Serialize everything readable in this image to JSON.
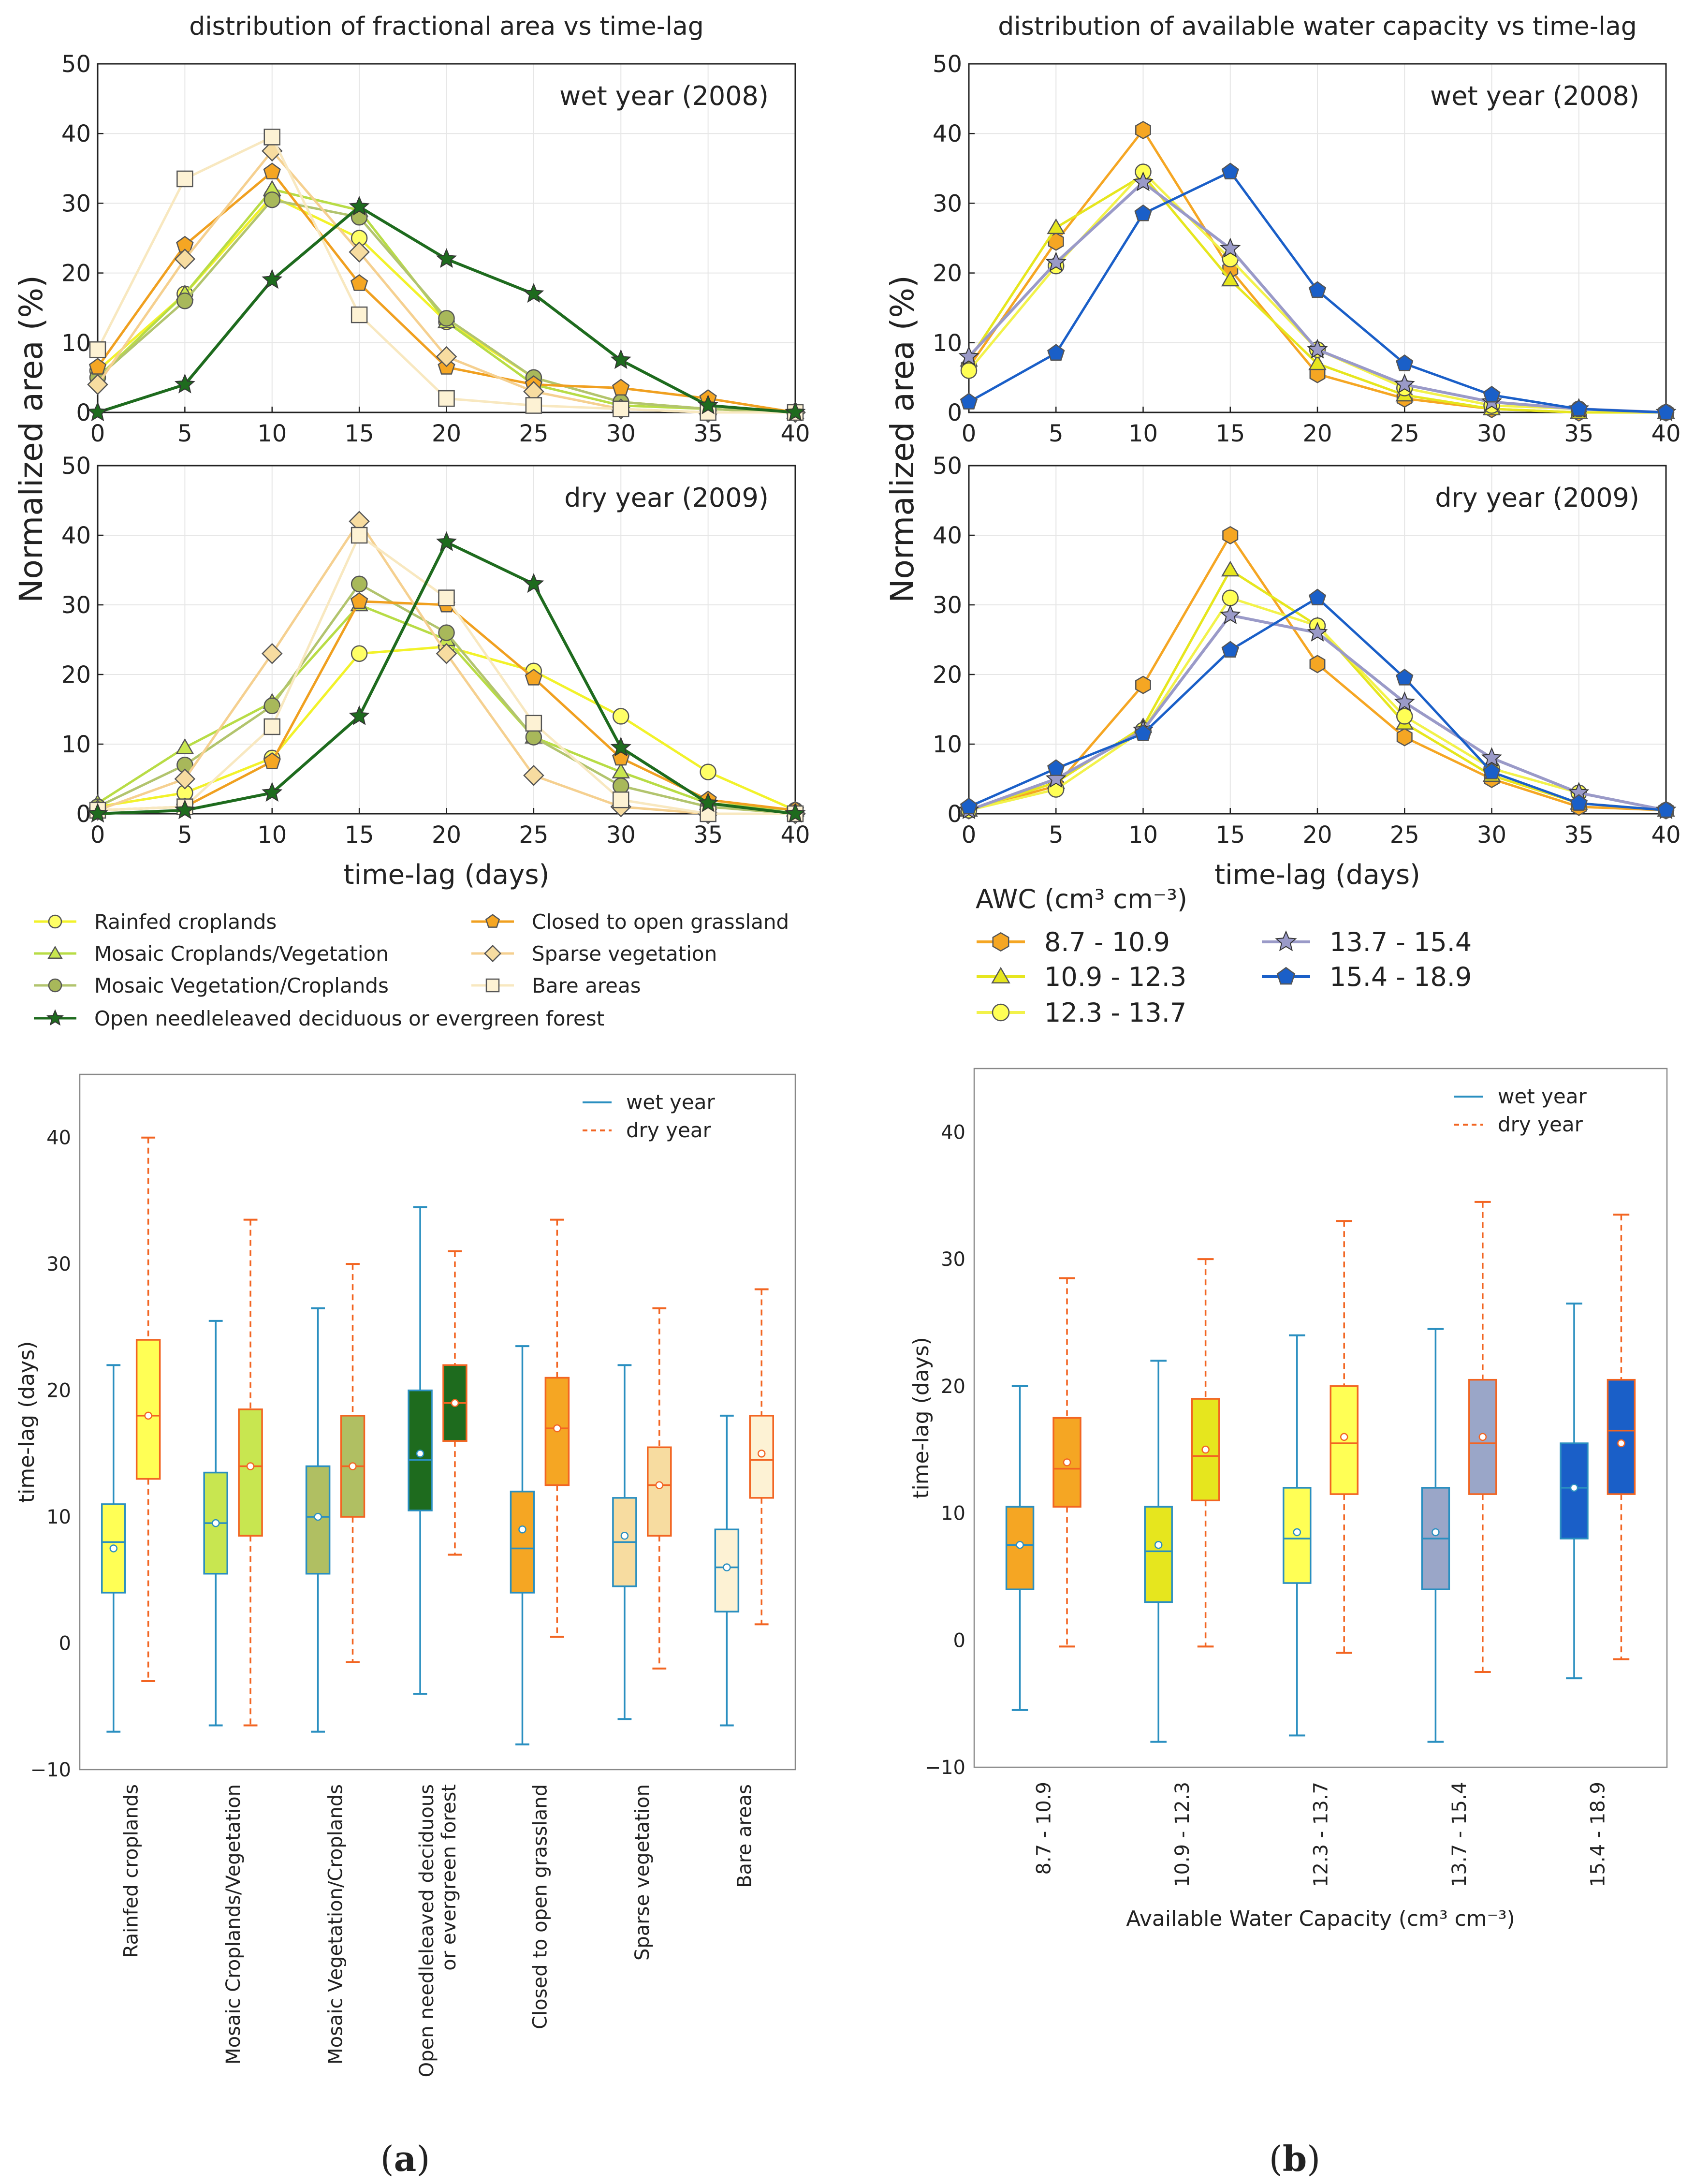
{
  "panel_labels": {
    "a": "a",
    "b": "b"
  },
  "chart_data": [
    {
      "id": "frac_wet",
      "type": "line",
      "title": "distribution of fractional area vs time-lag",
      "annotation": "wet year (2008)",
      "xlabel": "",
      "ylabel": "Normalized area (%)",
      "xlim": [
        0,
        40
      ],
      "ylim": [
        0,
        50
      ],
      "xticks": [
        0,
        5,
        10,
        15,
        20,
        25,
        30,
        35,
        40
      ],
      "yticks": [
        0,
        10,
        20,
        30,
        40,
        50
      ],
      "x": [
        0,
        5,
        10,
        15,
        20,
        25,
        30,
        35,
        40
      ],
      "series": [
        {
          "name": "Rainfed croplands",
          "color": "#ffff66",
          "line": "#f2f22a",
          "marker": "circle",
          "values": [
            6,
            17,
            31,
            25,
            13,
            5,
            1.5,
            0.5,
            0
          ]
        },
        {
          "name": "Mosaic Croplands/Vegetation",
          "color": "#c8e650",
          "line": "#b8dc46",
          "marker": "triangle",
          "values": [
            5,
            17,
            32,
            29,
            13,
            4,
            1,
            0.5,
            0
          ]
        },
        {
          "name": "Mosaic Vegetation/Croplands",
          "color": "#a8b85a",
          "line": "#b2c46e",
          "marker": "circle",
          "values": [
            5,
            16,
            30.5,
            28,
            13.5,
            5,
            1.5,
            0.5,
            0
          ]
        },
        {
          "name": "Closed to open grassland",
          "color": "#f5a623",
          "line": "#f0a020",
          "marker": "pentagon",
          "values": [
            6.5,
            24,
            34.5,
            18.5,
            6.5,
            4,
            3.5,
            2,
            0
          ]
        },
        {
          "name": "Sparse vegetation",
          "color": "#f7dca0",
          "line": "#f5d090",
          "marker": "diamond",
          "values": [
            4,
            22,
            37.5,
            23,
            8,
            3,
            0.5,
            0,
            0
          ]
        },
        {
          "name": "Bare areas",
          "color": "#fdf2d4",
          "line": "#f8e8c0",
          "marker": "square",
          "values": [
            9,
            33.5,
            39.5,
            14,
            2,
            1,
            0.5,
            0,
            0
          ]
        },
        {
          "name": "Open needleleaved deciduous or evergreen forest",
          "color": "#1e6b1e",
          "line": "#1e6b1e",
          "marker": "star",
          "values": [
            0,
            4,
            19,
            29.5,
            22,
            17,
            7.5,
            1,
            0
          ]
        }
      ]
    },
    {
      "id": "frac_dry",
      "type": "line",
      "title": "",
      "annotation": "dry year (2009)",
      "xlabel": "time-lag (days)",
      "ylabel": "",
      "xlim": [
        0,
        40
      ],
      "ylim": [
        0,
        50
      ],
      "xticks": [
        0,
        5,
        10,
        15,
        20,
        25,
        30,
        35,
        40
      ],
      "yticks": [
        0,
        10,
        20,
        30,
        40,
        50
      ],
      "x": [
        0,
        5,
        10,
        15,
        20,
        25,
        30,
        35,
        40
      ],
      "series": [
        {
          "name": "Rainfed croplands",
          "color": "#ffff66",
          "line": "#f2f22a",
          "marker": "circle",
          "values": [
            1,
            3,
            8,
            23,
            24,
            20.5,
            14,
            6,
            0.5
          ]
        },
        {
          "name": "Mosaic Croplands/Vegetation",
          "color": "#c8e650",
          "line": "#b8dc46",
          "marker": "triangle",
          "values": [
            1.5,
            9.5,
            16,
            30,
            25,
            11,
            6,
            1.5,
            0.5
          ]
        },
        {
          "name": "Mosaic Vegetation/Croplands",
          "color": "#a8b85a",
          "line": "#b2c46e",
          "marker": "circle",
          "values": [
            1,
            7,
            15.5,
            33,
            26,
            11,
            4,
            1,
            0
          ]
        },
        {
          "name": "Closed to open grassland",
          "color": "#f5a623",
          "line": "#f0a020",
          "marker": "pentagon",
          "values": [
            0.5,
            1,
            7.5,
            30.5,
            30,
            19.5,
            8,
            2,
            0.5
          ]
        },
        {
          "name": "Sparse vegetation",
          "color": "#f7dca0",
          "line": "#f5d090",
          "marker": "diamond",
          "values": [
            0.5,
            5,
            23,
            42,
            23,
            5.5,
            1,
            0,
            0
          ]
        },
        {
          "name": "Bare areas",
          "color": "#fdf2d4",
          "line": "#f8e8c0",
          "marker": "square",
          "values": [
            0.5,
            1,
            12.5,
            40,
            31,
            13,
            2,
            0,
            0
          ]
        },
        {
          "name": "Open needleleaved deciduous or evergreen forest",
          "color": "#1e6b1e",
          "line": "#1e6b1e",
          "marker": "star",
          "values": [
            0,
            0.5,
            3,
            14,
            39,
            33,
            9.5,
            1.5,
            0
          ]
        }
      ]
    },
    {
      "id": "awc_wet",
      "type": "line",
      "title": "distribution of available water capacity vs time-lag",
      "annotation": "wet year (2008)",
      "xlabel": "",
      "ylabel": "Normalized area (%)",
      "xlim": [
        0,
        40
      ],
      "ylim": [
        0,
        50
      ],
      "xticks": [
        0,
        5,
        10,
        15,
        20,
        25,
        30,
        35,
        40
      ],
      "yticks": [
        0,
        10,
        20,
        30,
        40,
        50
      ],
      "x": [
        0,
        5,
        10,
        15,
        20,
        25,
        30,
        35,
        40
      ],
      "series": [
        {
          "name": "8.7 - 10.9",
          "color": "#f5a623",
          "line": "#f5a623",
          "marker": "hexagon",
          "values": [
            6.5,
            24.5,
            40.5,
            20.5,
            5.5,
            2,
            0.5,
            0,
            0
          ]
        },
        {
          "name": "10.9 - 12.3",
          "color": "#e6e61e",
          "line": "#e6e61e",
          "marker": "triangle",
          "values": [
            7.5,
            26.5,
            34,
            19,
            7,
            2.5,
            0.5,
            0,
            0
          ]
        },
        {
          "name": "12.3 - 13.7",
          "color": "#ffff55",
          "line": "#f2f24a",
          "marker": "circle",
          "values": [
            6,
            21,
            34.5,
            22,
            9,
            3.5,
            1,
            0.5,
            0
          ]
        },
        {
          "name": "13.7 - 15.4",
          "color": "#9a9ac8",
          "line": "#9a9ac8",
          "marker": "star",
          "values": [
            8,
            21.5,
            33,
            23.5,
            9,
            4,
            1.5,
            0.5,
            0
          ]
        },
        {
          "name": "15.4 - 18.9",
          "color": "#1a5fc8",
          "line": "#1a5fc8",
          "marker": "pentagon",
          "values": [
            1.5,
            8.5,
            28.5,
            34.5,
            17.5,
            7,
            2.5,
            0.5,
            0
          ]
        }
      ]
    },
    {
      "id": "awc_dry",
      "type": "line",
      "title": "",
      "annotation": "dry year (2009)",
      "xlabel": "time-lag (days)",
      "ylabel": "",
      "xlim": [
        0,
        40
      ],
      "ylim": [
        0,
        50
      ],
      "xticks": [
        0,
        5,
        10,
        15,
        20,
        25,
        30,
        35,
        40
      ],
      "yticks": [
        0,
        10,
        20,
        30,
        40,
        50
      ],
      "x": [
        0,
        5,
        10,
        15,
        20,
        25,
        30,
        35,
        40
      ],
      "series": [
        {
          "name": "8.7 - 10.9",
          "color": "#f5a623",
          "line": "#f5a623",
          "marker": "hexagon",
          "values": [
            0.5,
            4,
            18.5,
            40,
            21.5,
            11,
            5,
            1,
            0.5
          ]
        },
        {
          "name": "10.9 - 12.3",
          "color": "#e6e61e",
          "line": "#e6e61e",
          "marker": "triangle",
          "values": [
            0.5,
            4.5,
            12.5,
            35,
            27,
            13,
            5.5,
            1.5,
            0.5
          ]
        },
        {
          "name": "12.3 - 13.7",
          "color": "#ffff55",
          "line": "#f2f24a",
          "marker": "circle",
          "values": [
            0.5,
            3.5,
            12,
            31,
            27,
            14,
            6.5,
            3,
            0.5
          ]
        },
        {
          "name": "13.7 - 15.4",
          "color": "#9a9ac8",
          "line": "#9a9ac8",
          "marker": "star",
          "values": [
            0.5,
            5,
            12,
            28.5,
            26,
            16,
            8,
            3,
            0.5
          ]
        },
        {
          "name": "15.4 - 18.9",
          "color": "#1a5fc8",
          "line": "#1a5fc8",
          "marker": "pentagon",
          "values": [
            1,
            6.5,
            11.5,
            23.5,
            31,
            19.5,
            6,
            1.5,
            0.5
          ]
        }
      ]
    },
    {
      "id": "box_a",
      "type": "box",
      "ylabel": "time-lag (days)",
      "xlabel": "",
      "ylim": [
        -10,
        45
      ],
      "yticks": [
        -10,
        0,
        10,
        20,
        30,
        40
      ],
      "legend": {
        "wet": "wet year",
        "dry": "dry year"
      },
      "wet_color": "#2a8fc0",
      "dry_color": "#f26522",
      "categories": [
        {
          "label": "Rainfed croplands",
          "color": "#ffff55",
          "wet": {
            "whislo": -7,
            "q1": 4,
            "med": 8,
            "q3": 11,
            "whishi": 22,
            "mean": 7.5
          },
          "dry": {
            "whislo": -3,
            "q1": 13,
            "med": 18,
            "q3": 24,
            "whishi": 40,
            "mean": 18
          }
        },
        {
          "label": "Mosaic Croplands/Vegetation",
          "color": "#c8e650",
          "wet": {
            "whislo": -6.5,
            "q1": 5.5,
            "med": 9.5,
            "q3": 13.5,
            "whishi": 25.5,
            "mean": 9.5
          },
          "dry": {
            "whislo": -6.5,
            "q1": 8.5,
            "med": 14,
            "q3": 18.5,
            "whishi": 33.5,
            "mean": 14
          }
        },
        {
          "label": "Mosaic Vegetation/Croplands",
          "color": "#b0bf62",
          "wet": {
            "whislo": -7,
            "q1": 5.5,
            "med": 10,
            "q3": 14,
            "whishi": 26.5,
            "mean": 10
          },
          "dry": {
            "whislo": -1.5,
            "q1": 10,
            "med": 14,
            "q3": 18,
            "whishi": 30,
            "mean": 14
          }
        },
        {
          "label": "Open needleleaved deciduous\nor evergreen forest",
          "color": "#1e6b1e",
          "wet": {
            "whislo": -4,
            "q1": 10.5,
            "med": 14.5,
            "q3": 20,
            "whishi": 34.5,
            "mean": 15
          },
          "dry": {
            "whislo": 7,
            "q1": 16,
            "med": 19,
            "q3": 22,
            "whishi": 31,
            "mean": 19
          }
        },
        {
          "label": "Closed to open grassland",
          "color": "#f5a623",
          "wet": {
            "whislo": -8,
            "q1": 4,
            "med": 7.5,
            "q3": 12,
            "whishi": 23.5,
            "mean": 9
          },
          "dry": {
            "whislo": 0.5,
            "q1": 12.5,
            "med": 17,
            "q3": 21,
            "whishi": 33.5,
            "mean": 17
          }
        },
        {
          "label": "Sparse vegetation",
          "color": "#f7dca0",
          "wet": {
            "whislo": -6,
            "q1": 4.5,
            "med": 8,
            "q3": 11.5,
            "whishi": 22,
            "mean": 8.5
          },
          "dry": {
            "whislo": -2,
            "q1": 8.5,
            "med": 12.5,
            "q3": 15.5,
            "whishi": 26.5,
            "mean": 12.5
          }
        },
        {
          "label": "Bare areas",
          "color": "#fdf2d4",
          "wet": {
            "whislo": -6.5,
            "q1": 2.5,
            "med": 6,
            "q3": 9,
            "whishi": 18,
            "mean": 6
          },
          "dry": {
            "whislo": 1.5,
            "q1": 11.5,
            "med": 14.5,
            "q3": 18,
            "whishi": 28,
            "mean": 15
          }
        }
      ]
    },
    {
      "id": "box_b",
      "type": "box",
      "ylabel": "time-lag (days)",
      "xlabel": "Available Water Capacity (cm³ cm⁻³)",
      "ylim": [
        -10,
        45
      ],
      "yticks": [
        -10,
        0,
        10,
        20,
        30,
        40
      ],
      "legend": {
        "wet": "wet year",
        "dry": "dry year"
      },
      "wet_color": "#2a8fc0",
      "dry_color": "#f26522",
      "categories": [
        {
          "label": "8.7 - 10.9",
          "color": "#f5a623",
          "wet": {
            "whislo": -5.5,
            "q1": 4,
            "med": 7.5,
            "q3": 10.5,
            "whishi": 20,
            "mean": 7.5
          },
          "dry": {
            "whislo": -0.5,
            "q1": 10.5,
            "med": 13.5,
            "q3": 17.5,
            "whishi": 28.5,
            "mean": 14
          }
        },
        {
          "label": "10.9 - 12.3",
          "color": "#e6e61e",
          "wet": {
            "whislo": -8,
            "q1": 3,
            "med": 7,
            "q3": 10.5,
            "whishi": 22,
            "mean": 7.5
          },
          "dry": {
            "whislo": -0.5,
            "q1": 11,
            "med": 14.5,
            "q3": 19,
            "whishi": 30,
            "mean": 15
          }
        },
        {
          "label": "12.3 - 13.7",
          "color": "#ffff55",
          "wet": {
            "whislo": -7.5,
            "q1": 4.5,
            "med": 8,
            "q3": 12,
            "whishi": 24,
            "mean": 8.5
          },
          "dry": {
            "whislo": -1,
            "q1": 11.5,
            "med": 15.5,
            "q3": 20,
            "whishi": 33,
            "mean": 16
          }
        },
        {
          "label": "13.7 - 15.4",
          "color": "#9aa6c8",
          "wet": {
            "whislo": -8,
            "q1": 4,
            "med": 8,
            "q3": 12,
            "whishi": 24.5,
            "mean": 8.5
          },
          "dry": {
            "whislo": -2.5,
            "q1": 11.5,
            "med": 15.5,
            "q3": 20.5,
            "whishi": 34.5,
            "mean": 16
          }
        },
        {
          "label": "15.4 - 18.9",
          "color": "#1a5fc8",
          "wet": {
            "whislo": -3,
            "q1": 8,
            "med": 12,
            "q3": 15.5,
            "whishi": 26.5,
            "mean": 12
          },
          "dry": {
            "whislo": -1.5,
            "q1": 11.5,
            "med": 16.5,
            "q3": 20.5,
            "whishi": 33.5,
            "mean": 15.5
          }
        }
      ]
    }
  ],
  "legends": {
    "landcover": [
      {
        "label": "Rainfed croplands",
        "color": "#ffff66",
        "line": "#f2f22a",
        "marker": "circle"
      },
      {
        "label": "Mosaic Croplands/Vegetation",
        "color": "#c8e650",
        "line": "#b8dc46",
        "marker": "triangle"
      },
      {
        "label": "Mosaic Vegetation/Croplands",
        "color": "#a8b85a",
        "line": "#b2c46e",
        "marker": "circle"
      },
      {
        "label": "Open needleleaved deciduous or evergreen forest",
        "color": "#1e6b1e",
        "line": "#1e6b1e",
        "marker": "star"
      },
      {
        "label": "Closed to open grassland",
        "color": "#f5a623",
        "line": "#f0a020",
        "marker": "pentagon"
      },
      {
        "label": "Sparse vegetation",
        "color": "#f7dca0",
        "line": "#f5d090",
        "marker": "diamond"
      },
      {
        "label": "Bare areas",
        "color": "#fdf2d4",
        "line": "#f8e8c0",
        "marker": "square"
      }
    ],
    "awc_title": "AWC (cm³ cm⁻³)",
    "awc": [
      {
        "label": "8.7 - 10.9",
        "color": "#f5a623",
        "line": "#f5a623",
        "marker": "hexagon"
      },
      {
        "label": "10.9 - 12.3",
        "color": "#e6e61e",
        "line": "#e6e61e",
        "marker": "triangle"
      },
      {
        "label": "12.3 - 13.7",
        "color": "#ffff55",
        "line": "#f2f24a",
        "marker": "circle"
      },
      {
        "label": "13.7 - 15.4",
        "color": "#9a9ac8",
        "line": "#9a9ac8",
        "marker": "star"
      },
      {
        "label": "15.4 - 18.9",
        "color": "#1a5fc8",
        "line": "#1a5fc8",
        "marker": "pentagon"
      }
    ]
  }
}
